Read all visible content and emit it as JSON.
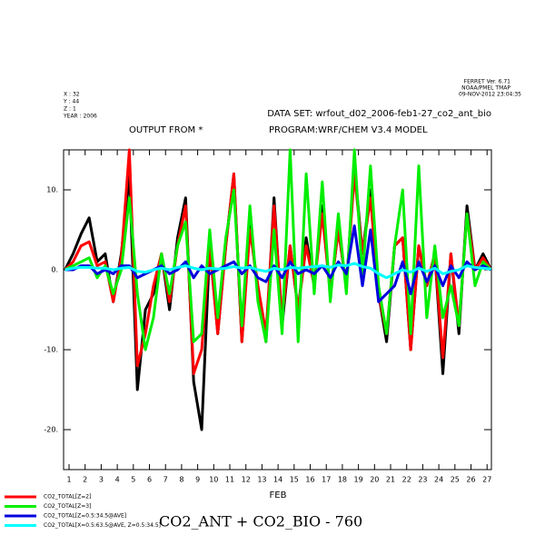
{
  "chart_data": {
    "type": "line",
    "title": "CO2_ANT + CO2_BIO - 760",
    "subtitle": "DATA SET: wrfout_d02_2006-feb1-27_co2_ant_bio",
    "annotations": [
      "OUTPUT FROM *",
      "PROGRAM:WRF/CHEM V3.4 MODEL"
    ],
    "header_left": [
      "X : 32",
      "Y : 44",
      "Z : 1",
      "YEAR : 2006"
    ],
    "header_right": [
      "FERRET Ver. 6.71",
      "NOAA/PMEL TMAP",
      "09-NOV-2012 23:04:35"
    ],
    "xlabel": "FEB",
    "xlim": [
      0.66,
      27.27
    ],
    "xticks": [
      1,
      2,
      3,
      4,
      5,
      6,
      7,
      8,
      9,
      10,
      11,
      12,
      13,
      14,
      15,
      16,
      17,
      18,
      19,
      20,
      21,
      22,
      23,
      24,
      25,
      26,
      27
    ],
    "ylim": [
      -25,
      15
    ],
    "yticks": [
      {
        "value": -20,
        "label": "-20."
      },
      {
        "value": -10,
        "label": "-10."
      },
      {
        "value": 0,
        "label": "0."
      },
      {
        "value": 10,
        "label": "10."
      }
    ],
    "x": [
      0.75,
      1.25,
      1.75,
      2.25,
      2.75,
      3.25,
      3.75,
      4.25,
      4.75,
      5.25,
      5.75,
      6.25,
      6.75,
      7.25,
      7.75,
      8.25,
      8.75,
      9.25,
      9.75,
      10.25,
      10.75,
      11.25,
      11.75,
      12.25,
      12.75,
      13.25,
      13.75,
      14.25,
      14.75,
      15.25,
      15.75,
      16.25,
      16.75,
      17.25,
      17.75,
      18.25,
      18.75,
      19.25,
      19.75,
      20.25,
      20.75,
      21.25,
      21.75,
      22.25,
      22.75,
      23.25,
      23.75,
      24.25,
      24.75,
      25.25,
      25.75,
      26.25,
      26.75,
      27.25
    ],
    "series": [
      {
        "color": "#000000",
        "values": [
          0,
          2,
          4.5,
          6.5,
          1,
          2,
          -4,
          2,
          12,
          -15,
          -5,
          -3,
          2,
          -5,
          4,
          9,
          -14,
          -20,
          3,
          -8,
          3,
          12,
          -9,
          6,
          -3,
          -9,
          9,
          -7,
          3,
          -5,
          4,
          -2,
          8,
          -3,
          5,
          -2,
          13,
          2,
          10,
          -3,
          -9,
          3,
          4,
          -10,
          3,
          -2,
          2,
          -13,
          2,
          -8,
          8,
          0,
          2,
          0
        ]
      },
      {
        "name": "CO2_TOTAL[Z=2]",
        "color": "#ff0000",
        "values": [
          0,
          1,
          3,
          3.5,
          0.5,
          1,
          -4,
          1.5,
          15,
          -12,
          -8,
          -2,
          2,
          -4,
          3,
          8,
          -13,
          -10,
          3,
          -8,
          3,
          12,
          -9,
          5,
          -2,
          -8,
          8,
          -6,
          3,
          -5,
          3,
          -2,
          7,
          -3,
          5,
          -2,
          12,
          2,
          9,
          -3,
          -8,
          3,
          4,
          -10,
          3,
          -2,
          2,
          -11,
          2,
          -7,
          7,
          0,
          1.5,
          0
        ]
      },
      {
        "name": "CO2_TOTAL[Z=3]",
        "color": "#00ee00",
        "values": [
          0,
          0.5,
          1,
          1.5,
          -1,
          0.5,
          -3,
          0,
          9,
          -3,
          -10,
          -6,
          2,
          -3,
          3,
          6,
          -9,
          -8,
          5,
          -6,
          4,
          10,
          -7,
          8,
          -4,
          -9,
          5,
          -8,
          15,
          -9,
          12,
          -3,
          11,
          -4,
          7,
          -3,
          15,
          -1,
          13,
          -2,
          -8,
          3,
          10,
          -8,
          13,
          -6,
          3,
          -6,
          -2,
          -7,
          7,
          -2,
          1,
          0
        ]
      },
      {
        "name": "CO2_TOTAL[Z=0.5:34.5@AVE]",
        "color": "#0000dd",
        "values": [
          0,
          0,
          0.5,
          0.5,
          -0.5,
          0,
          -0.5,
          0.5,
          0.5,
          -1,
          -0.5,
          0,
          0.5,
          -0.5,
          0,
          1,
          -1,
          0.5,
          -0.5,
          0,
          0.5,
          1,
          -0.5,
          0.5,
          -1,
          -1.5,
          0.5,
          -1,
          1,
          -0.5,
          0,
          -0.5,
          0.5,
          -1,
          1,
          -0.5,
          5.5,
          -2,
          5,
          -4,
          -3,
          -2,
          1,
          -3,
          1,
          -1.5,
          0.5,
          -2,
          0.5,
          -1,
          1,
          0,
          0.5,
          0
        ]
      },
      {
        "name": "CO2_TOTAL[X=0.5:63.5@AVE, Z=0.5:34.5]",
        "color": "#00ffff",
        "values": [
          0,
          0.2,
          0.3,
          0.3,
          0.2,
          0.2,
          0,
          0.2,
          0.3,
          -0.2,
          -0.3,
          0,
          0.2,
          0,
          0.3,
          0.5,
          0.2,
          0,
          0.2,
          0.1,
          0.2,
          0.4,
          0.2,
          0.3,
          0,
          -0.2,
          0.2,
          0,
          0.3,
          0.2,
          0.3,
          0.4,
          0.5,
          0.3,
          0.6,
          0.5,
          0.8,
          0.4,
          0.2,
          -0.5,
          -1,
          -0.5,
          0,
          -0.3,
          0.2,
          -0.2,
          0.2,
          -0.5,
          -0.2,
          0,
          0.5,
          0.3,
          0.2,
          0.1
        ]
      }
    ]
  }
}
